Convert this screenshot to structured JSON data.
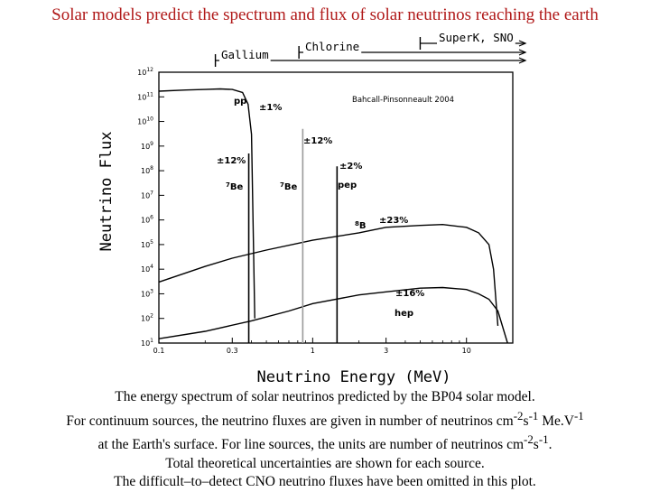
{
  "title": "Solar models predict the spectrum and flux of solar neutrinos reaching the earth",
  "detector_ranges": [
    {
      "name": "Gallium",
      "threshold_mev": 0.233
    },
    {
      "name": "Chlorine",
      "threshold_mev": 0.814
    },
    {
      "name": "SuperK, SNO",
      "threshold_mev": 5.0
    }
  ],
  "chart_data": {
    "type": "line",
    "title": "",
    "credit": "Bahcall-Pinsonneault 2004",
    "xlabel": "Neutrino Energy (MeV)",
    "ylabel": "Neutrino Flux",
    "xscale": "log",
    "yscale": "log",
    "xlim": [
      0.1,
      20
    ],
    "ylim": [
      10,
      1000000000000.0
    ],
    "x_ticks": [
      0.1,
      0.3,
      1,
      3,
      10
    ],
    "x_tick_labels": [
      "0.1",
      "0.3",
      "1",
      "3",
      "10"
    ],
    "y_ticks": [
      10,
      100,
      1000,
      10000,
      100000,
      1000000,
      10000000,
      100000000,
      1000000000,
      10000000000,
      100000000000,
      1000000000000
    ],
    "y_tick_labels": [
      {
        "base": "10",
        "exp": "1"
      },
      {
        "base": "10",
        "exp": "2"
      },
      {
        "base": "10",
        "exp": "3"
      },
      {
        "base": "10",
        "exp": "4"
      },
      {
        "base": "10",
        "exp": "5"
      },
      {
        "base": "10",
        "exp": "6"
      },
      {
        "base": "10",
        "exp": "7"
      },
      {
        "base": "10",
        "exp": "8"
      },
      {
        "base": "10",
        "exp": "9"
      },
      {
        "base": "10",
        "exp": "10"
      },
      {
        "base": "10",
        "exp": "11"
      },
      {
        "base": "10",
        "exp": "12"
      }
    ],
    "series": [
      {
        "name": "pp",
        "kind": "continuum",
        "label": "pp",
        "uncertainty": "±1%",
        "x": [
          0.1,
          0.15,
          0.2,
          0.25,
          0.3,
          0.35,
          0.38,
          0.4,
          0.42
        ],
        "y": [
          170000000000,
          190000000000,
          200000000000,
          210000000000,
          200000000000,
          150000000000,
          50000000000,
          3000000000,
          100
        ]
      },
      {
        "name": "8B",
        "kind": "continuum",
        "label": "8B",
        "uncertainty": "±23%",
        "x": [
          0.1,
          0.2,
          0.3,
          0.5,
          1,
          2,
          3,
          5,
          7,
          10,
          12,
          14,
          15,
          16
        ],
        "y": [
          3000,
          13000,
          28000,
          60000,
          150000,
          300000,
          500000,
          600000,
          650000,
          500000,
          300000,
          100000,
          10000,
          50
        ]
      },
      {
        "name": "hep",
        "kind": "continuum",
        "label": "hep",
        "uncertainty": "±16%",
        "x": [
          0.1,
          0.2,
          0.4,
          0.7,
          1,
          2,
          3,
          5,
          7,
          10,
          12,
          14,
          16,
          18.5
        ],
        "y": [
          15,
          30,
          80,
          200,
          400,
          900,
          1200,
          1700,
          1800,
          1500,
          1000,
          600,
          200,
          10
        ]
      },
      {
        "name": "7Be (0.38 MeV)",
        "kind": "line",
        "label": "7Be",
        "uncertainty": "±12%",
        "x": 0.384,
        "y": 500000000
      },
      {
        "name": "7Be (0.86 MeV)",
        "kind": "line",
        "label": "7Be",
        "uncertainty": "±12%",
        "x": 0.862,
        "y": 5000000000
      },
      {
        "name": "pep",
        "kind": "line",
        "label": "pep",
        "uncertainty": "±2%",
        "x": 1.44,
        "y": 150000000
      }
    ]
  },
  "caption": [
    {
      "text": "The energy spectrum of solar neutrinos predicted by the BP04 solar model."
    },
    {
      "text": "For continuum sources, the neutrino fluxes are given in number of neutrinos cm",
      "sup1": "-2",
      "mid": "s",
      "sup2": "-1",
      "tail": " Me.V",
      "sup3": "-1"
    },
    {
      "text": "at the Earth's surface. For line sources, the units are number of neutrinos cm",
      "sup1": "-2",
      "mid": "s",
      "sup2": "-1",
      "tail": "."
    },
    {
      "text": "Total theoretical uncertainties are shown for each source."
    },
    {
      "text": "The difficult–to–detect CNO neutrino fluxes have been omitted in this plot."
    }
  ]
}
